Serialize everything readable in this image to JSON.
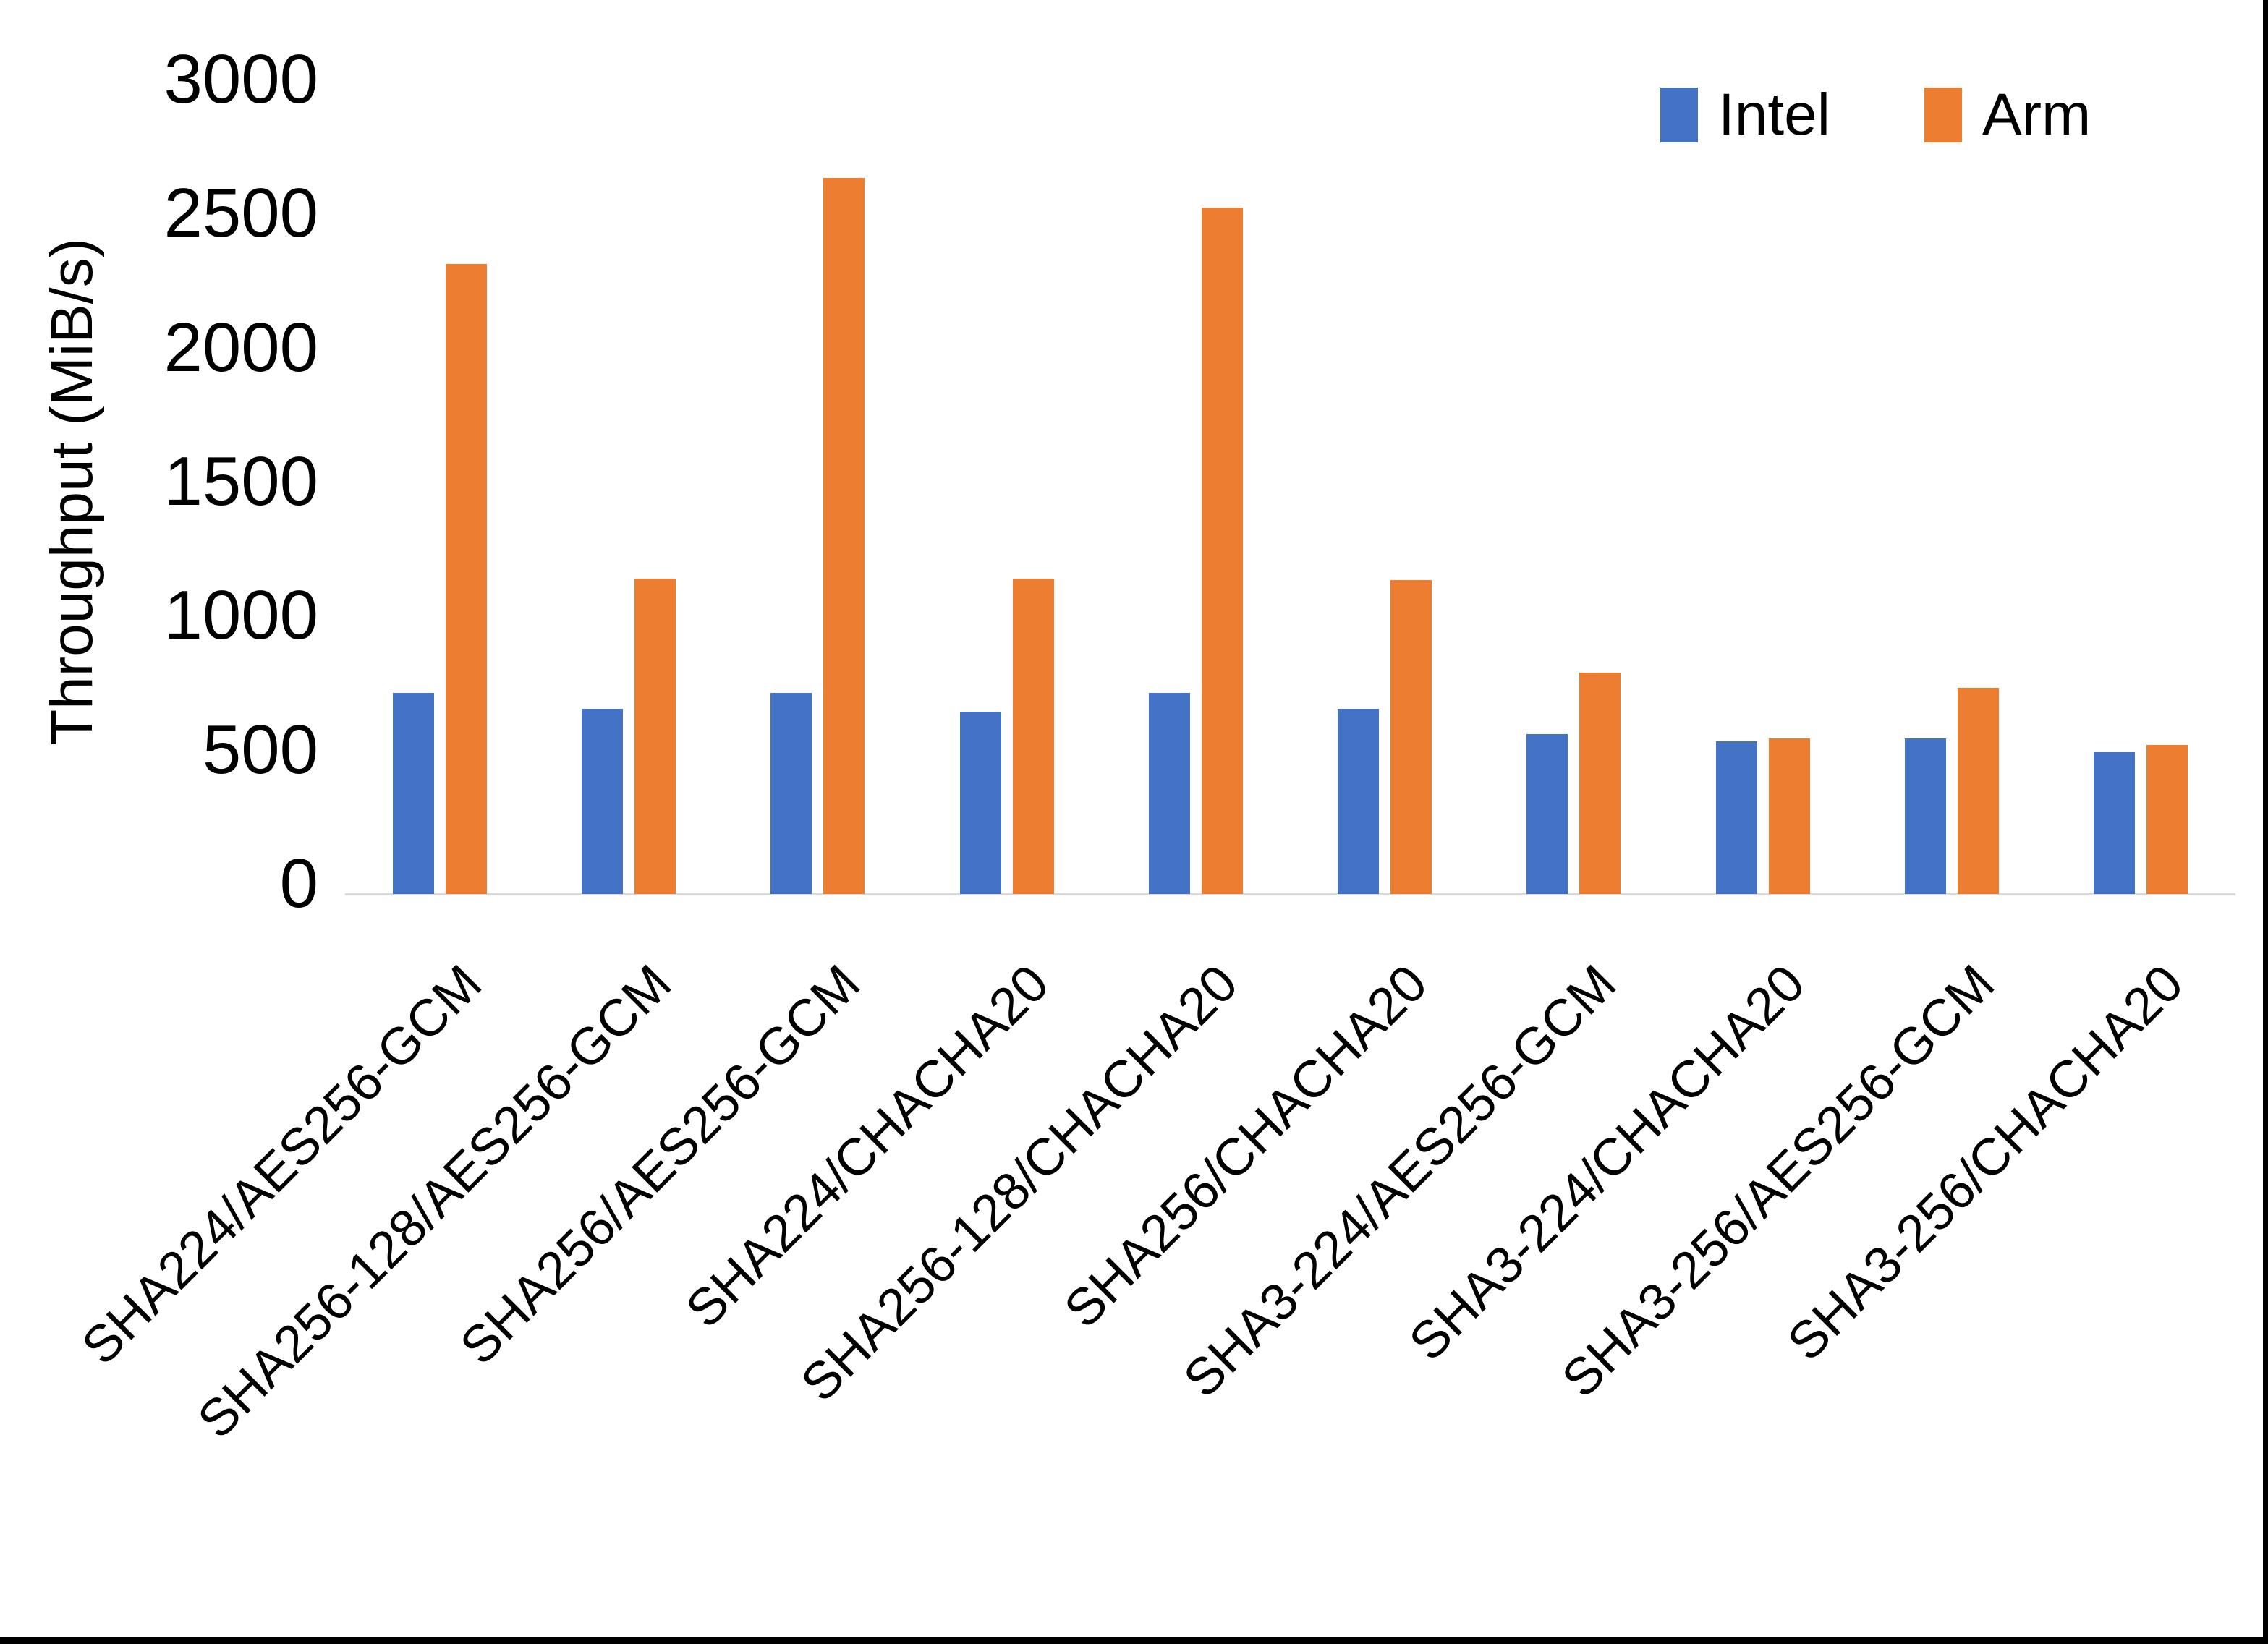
{
  "chart_data": {
    "type": "bar",
    "title": "",
    "xlabel": "",
    "ylabel": "Throughput (MiB/s)",
    "ylim": [
      0,
      3000
    ],
    "yticks": [
      0,
      500,
      1000,
      1500,
      2000,
      2500,
      3000
    ],
    "grid": false,
    "legend_position": "top-right",
    "axis_line_color": "#D9D9D9",
    "categories": [
      "SHA224/AES256-GCM",
      "SHA256-128/AES256-GCM",
      "SHA256/AES256-GCM",
      "SHA224/CHACHA20",
      "SHA256-128/CHACHA20",
      "SHA256/CHACHA20",
      "SHA3-224/AES256-GCM",
      "SHA3-224/CHACHA20",
      "SHA3-256/AES256-GCM",
      "SHA3-256/CHACHA20"
    ],
    "series": [
      {
        "name": "Intel",
        "color": "#4472C4",
        "values": [
          750,
          690,
          750,
          680,
          750,
          690,
          595,
          570,
          580,
          530
        ]
      },
      {
        "name": "Arm",
        "color": "#ED7D31",
        "values": [
          2350,
          1175,
          2670,
          1175,
          2560,
          1170,
          825,
          580,
          770,
          555
        ]
      }
    ]
  },
  "frame": {
    "border_color": "#000000"
  }
}
